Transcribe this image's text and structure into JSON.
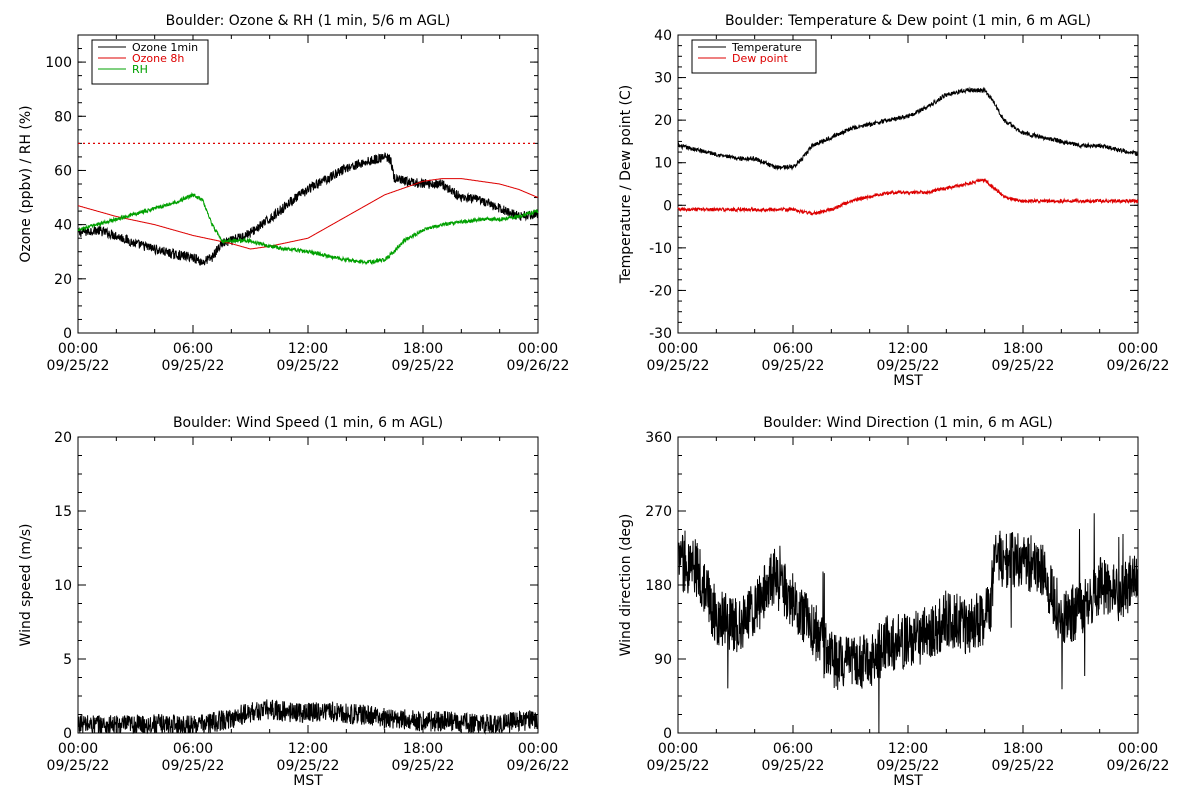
{
  "colors": {
    "black": "#000000",
    "red": "#dd0000",
    "green": "#00a000"
  },
  "chart_data": [
    {
      "id": "ozone_rh",
      "type": "line",
      "title": "Boulder: Ozone & RH (1 min, 5/6 m AGL)",
      "xlabel": "",
      "ylabel": "Ozone (ppbv) / RH (%)",
      "x_range": [
        "09/25/22 00:00",
        "09/26/22 00:00"
      ],
      "ylim": [
        0,
        110
      ],
      "y_ticks": [
        "0",
        "20",
        "40",
        "60",
        "80",
        "100"
      ],
      "x_ticks": [
        {
          "time": "00:00",
          "date": "09/25/22"
        },
        {
          "time": "06:00",
          "date": "09/25/22"
        },
        {
          "time": "12:00",
          "date": "09/25/22"
        },
        {
          "time": "18:00",
          "date": "09/25/22"
        },
        {
          "time": "00:00",
          "date": "09/26/22"
        }
      ],
      "legend": "top-left",
      "reference_line": {
        "y": 70,
        "style": "dotted",
        "color": "#dd0000"
      },
      "series": [
        {
          "name": "Ozone 1min",
          "color": "#000000",
          "x_hours": [
            0,
            1,
            2,
            3,
            4,
            5,
            6,
            6.5,
            7,
            7.5,
            8,
            9,
            10,
            11,
            12,
            13,
            14,
            15,
            16,
            16.3,
            16.5,
            17,
            18,
            19,
            20,
            21,
            22,
            23,
            24
          ],
          "values": [
            37,
            38,
            36,
            33,
            31,
            29,
            28,
            26,
            28,
            33,
            34,
            37,
            42,
            48,
            53,
            57,
            61,
            63,
            65,
            64,
            57,
            56,
            55,
            55,
            50,
            49,
            46,
            43,
            44
          ],
          "noise": 1.8
        },
        {
          "name": "Ozone 8h",
          "color": "#dd0000",
          "x_hours": [
            0,
            2,
            4,
            6,
            8,
            9,
            10,
            12,
            14,
            16,
            18,
            19,
            20,
            21,
            22,
            23,
            24
          ],
          "values": [
            47,
            43,
            40,
            36,
            33,
            31,
            32,
            35,
            43,
            51,
            56,
            57,
            57,
            56,
            55,
            53,
            50
          ],
          "noise": 0
        },
        {
          "name": "RH",
          "color": "#00a000",
          "x_hours": [
            0,
            1,
            2,
            3,
            4,
            5,
            6,
            6.5,
            7,
            7.5,
            8,
            9,
            10,
            12,
            14,
            15,
            16,
            16.5,
            17,
            18,
            19,
            20,
            21,
            22,
            23,
            24
          ],
          "values": [
            38,
            40,
            42,
            44,
            46,
            48,
            51,
            49,
            40,
            34,
            34,
            34,
            32,
            30,
            27,
            26,
            27,
            30,
            34,
            38,
            40,
            41,
            42,
            42,
            43,
            45
          ],
          "noise": 0.7
        }
      ]
    },
    {
      "id": "temp_dew",
      "type": "line",
      "title": "Boulder: Temperature & Dew point (1 min, 6 m AGL)",
      "xlabel": "MST",
      "ylabel": "Temperature / Dew point (C)",
      "x_range": [
        "09/25/22 00:00",
        "09/26/22 00:00"
      ],
      "ylim": [
        -30,
        40
      ],
      "y_ticks": [
        "-30",
        "-20",
        "-10",
        "0",
        "10",
        "20",
        "30",
        "40"
      ],
      "x_ticks": [
        {
          "time": "00:00",
          "date": "09/25/22"
        },
        {
          "time": "06:00",
          "date": "09/25/22"
        },
        {
          "time": "12:00",
          "date": "09/25/22"
        },
        {
          "time": "18:00",
          "date": "09/25/22"
        },
        {
          "time": "00:00",
          "date": "09/26/22"
        }
      ],
      "legend": "top-left",
      "series": [
        {
          "name": "Temperature",
          "color": "#000000",
          "x_hours": [
            0,
            1,
            2,
            3,
            4,
            5,
            6,
            6.5,
            7,
            8,
            9,
            10,
            11,
            12,
            13,
            14,
            15,
            16,
            16.5,
            17,
            18,
            19,
            20,
            21,
            22,
            23,
            24
          ],
          "values": [
            14,
            13,
            12,
            11,
            11,
            9,
            9,
            11,
            14,
            16,
            18,
            19,
            20,
            21,
            23,
            26,
            27,
            27,
            24,
            20,
            17,
            16,
            15,
            14,
            14,
            13,
            12
          ],
          "noise": 0.5
        },
        {
          "name": "Dew point",
          "color": "#dd0000",
          "x_hours": [
            0,
            2,
            4,
            6,
            7,
            8,
            9,
            10,
            11,
            12,
            13,
            14,
            15,
            16,
            16.5,
            17,
            18,
            19,
            20,
            21,
            22,
            23,
            24
          ],
          "values": [
            -1,
            -1,
            -1,
            -1,
            -2,
            -1,
            1,
            2,
            3,
            3,
            3,
            4,
            5,
            6,
            4,
            2,
            1,
            1,
            1,
            1,
            1,
            1,
            1
          ],
          "noise": 0.4
        }
      ]
    },
    {
      "id": "wind_speed",
      "type": "line",
      "title": "Boulder: Wind Speed (1 min, 6 m AGL)",
      "xlabel": "MST",
      "ylabel": "Wind speed (m/s)",
      "x_range": [
        "09/25/22 00:00",
        "09/26/22 00:00"
      ],
      "ylim": [
        0,
        20
      ],
      "y_ticks": [
        "0",
        "5",
        "10",
        "15",
        "20"
      ],
      "x_ticks": [
        {
          "time": "00:00",
          "date": "09/25/22"
        },
        {
          "time": "06:00",
          "date": "09/25/22"
        },
        {
          "time": "12:00",
          "date": "09/25/22"
        },
        {
          "time": "18:00",
          "date": "09/25/22"
        },
        {
          "time": "00:00",
          "date": "09/26/22"
        }
      ],
      "series": [
        {
          "name": "",
          "color": "#000000",
          "x_hours": [
            0,
            2,
            4,
            6,
            7,
            8,
            9,
            10,
            11,
            12,
            13,
            14,
            15,
            16,
            17,
            18,
            19,
            20,
            21,
            22,
            23,
            24
          ],
          "values": [
            0.6,
            0.5,
            0.6,
            0.5,
            0.7,
            1.0,
            1.4,
            1.6,
            1.4,
            1.4,
            1.5,
            1.3,
            1.2,
            1.0,
            0.9,
            0.8,
            0.8,
            0.7,
            0.6,
            0.6,
            0.8,
            0.9
          ],
          "noise": 0.7
        }
      ]
    },
    {
      "id": "wind_dir",
      "type": "line",
      "title": "Boulder: Wind Direction (1 min, 6 m AGL)",
      "xlabel": "MST",
      "ylabel": "Wind direction (deg)",
      "x_range": [
        "09/25/22 00:00",
        "09/26/22 00:00"
      ],
      "ylim": [
        0,
        360
      ],
      "y_ticks": [
        "0",
        "90",
        "180",
        "270",
        "360"
      ],
      "x_ticks": [
        {
          "time": "00:00",
          "date": "09/25/22"
        },
        {
          "time": "06:00",
          "date": "09/25/22"
        },
        {
          "time": "12:00",
          "date": "09/25/22"
        },
        {
          "time": "18:00",
          "date": "09/25/22"
        },
        {
          "time": "00:00",
          "date": "09/26/22"
        }
      ],
      "series": [
        {
          "name": "",
          "color": "#000000",
          "x_hours": [
            0,
            1,
            2,
            3,
            4,
            5,
            6,
            7,
            8,
            9,
            10,
            11,
            12,
            13,
            14,
            15,
            16,
            16.3,
            16.5,
            17,
            18,
            19,
            20,
            21,
            22,
            23,
            24
          ],
          "values": [
            210,
            200,
            140,
            130,
            150,
            190,
            160,
            130,
            90,
            80,
            90,
            110,
            110,
            120,
            140,
            130,
            140,
            150,
            215,
            210,
            210,
            200,
            140,
            150,
            180,
            170,
            190
          ],
          "noise": 35
        }
      ]
    }
  ]
}
